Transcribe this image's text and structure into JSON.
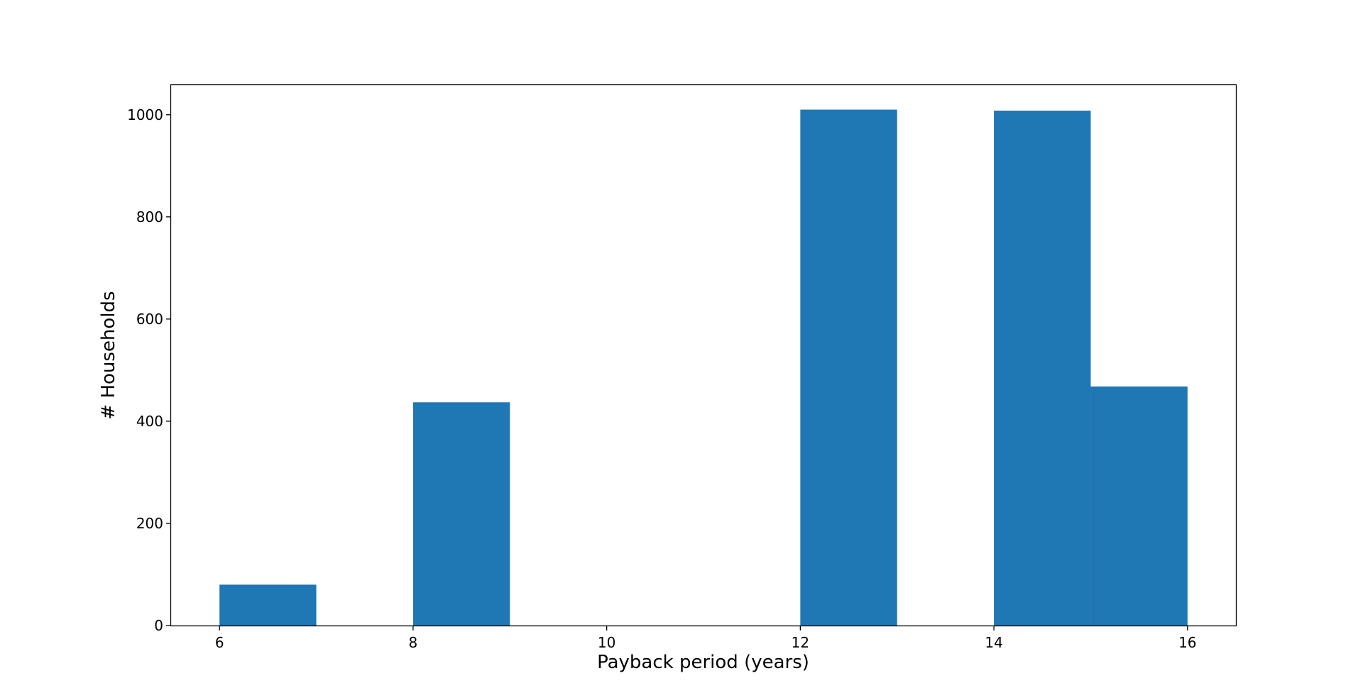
{
  "chart_data": {
    "type": "bar",
    "subtype": "histogram",
    "xlabel": "Payback period (years)",
    "ylabel": "# Households",
    "xlim": [
      5.5,
      16.5
    ],
    "ylim": [
      0,
      1058
    ],
    "xticks": [
      6,
      8,
      10,
      12,
      14,
      16
    ],
    "yticks": [
      0,
      200,
      400,
      600,
      800,
      1000
    ],
    "bins": [
      {
        "x0": 6,
        "x1": 7,
        "value": 80
      },
      {
        "x0": 7,
        "x1": 8,
        "value": 0
      },
      {
        "x0": 8,
        "x1": 9,
        "value": 437
      },
      {
        "x0": 9,
        "x1": 10,
        "value": 0
      },
      {
        "x0": 10,
        "x1": 11,
        "value": 0
      },
      {
        "x0": 11,
        "x1": 12,
        "value": 0
      },
      {
        "x0": 12,
        "x1": 13,
        "value": 1010
      },
      {
        "x0": 13,
        "x1": 14,
        "value": 0
      },
      {
        "x0": 14,
        "x1": 15,
        "value": 1008
      },
      {
        "x0": 15,
        "x1": 16,
        "value": 468
      }
    ],
    "bar_color": "#1f77b4",
    "grid": false,
    "legend": "none"
  }
}
